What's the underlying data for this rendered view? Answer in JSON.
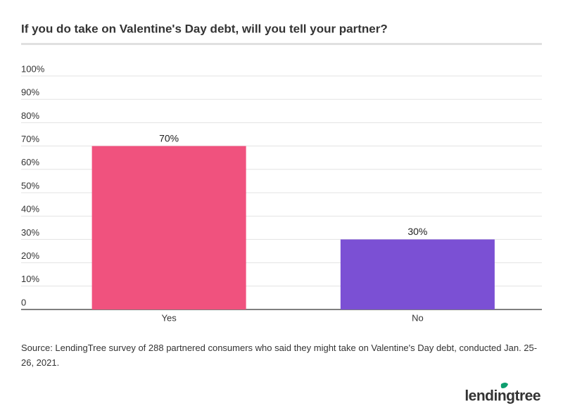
{
  "chart_data": {
    "type": "bar",
    "title": "If you do take on Valentine's Day debt, will you tell your partner?",
    "categories": [
      "Yes",
      "No"
    ],
    "values": [
      70,
      30
    ],
    "value_labels": [
      "70%",
      "30%"
    ],
    "colors": [
      "#f0527e",
      "#7b50d4"
    ],
    "ylim": [
      0,
      100
    ],
    "yticks": [
      0,
      {
        "value": 10,
        "label": "10%"
      },
      {
        "value": 20,
        "label": "20%"
      },
      {
        "value": 30,
        "label": "30%"
      },
      {
        "value": 40,
        "label": "40%"
      },
      {
        "value": 50,
        "label": "50%"
      },
      {
        "value": 60,
        "label": "60%"
      },
      {
        "value": 70,
        "label": "70%"
      },
      {
        "value": 80,
        "label": "80%"
      },
      {
        "value": 90,
        "label": "90%"
      },
      {
        "value": 100,
        "label": "100%"
      }
    ],
    "grid": true,
    "source": "Source: LendingTree survey of 288 partnered consumers who said they might take on Valentine's Day debt, conducted Jan. 25-26, 2021.",
    "logo": "lendingtree"
  }
}
